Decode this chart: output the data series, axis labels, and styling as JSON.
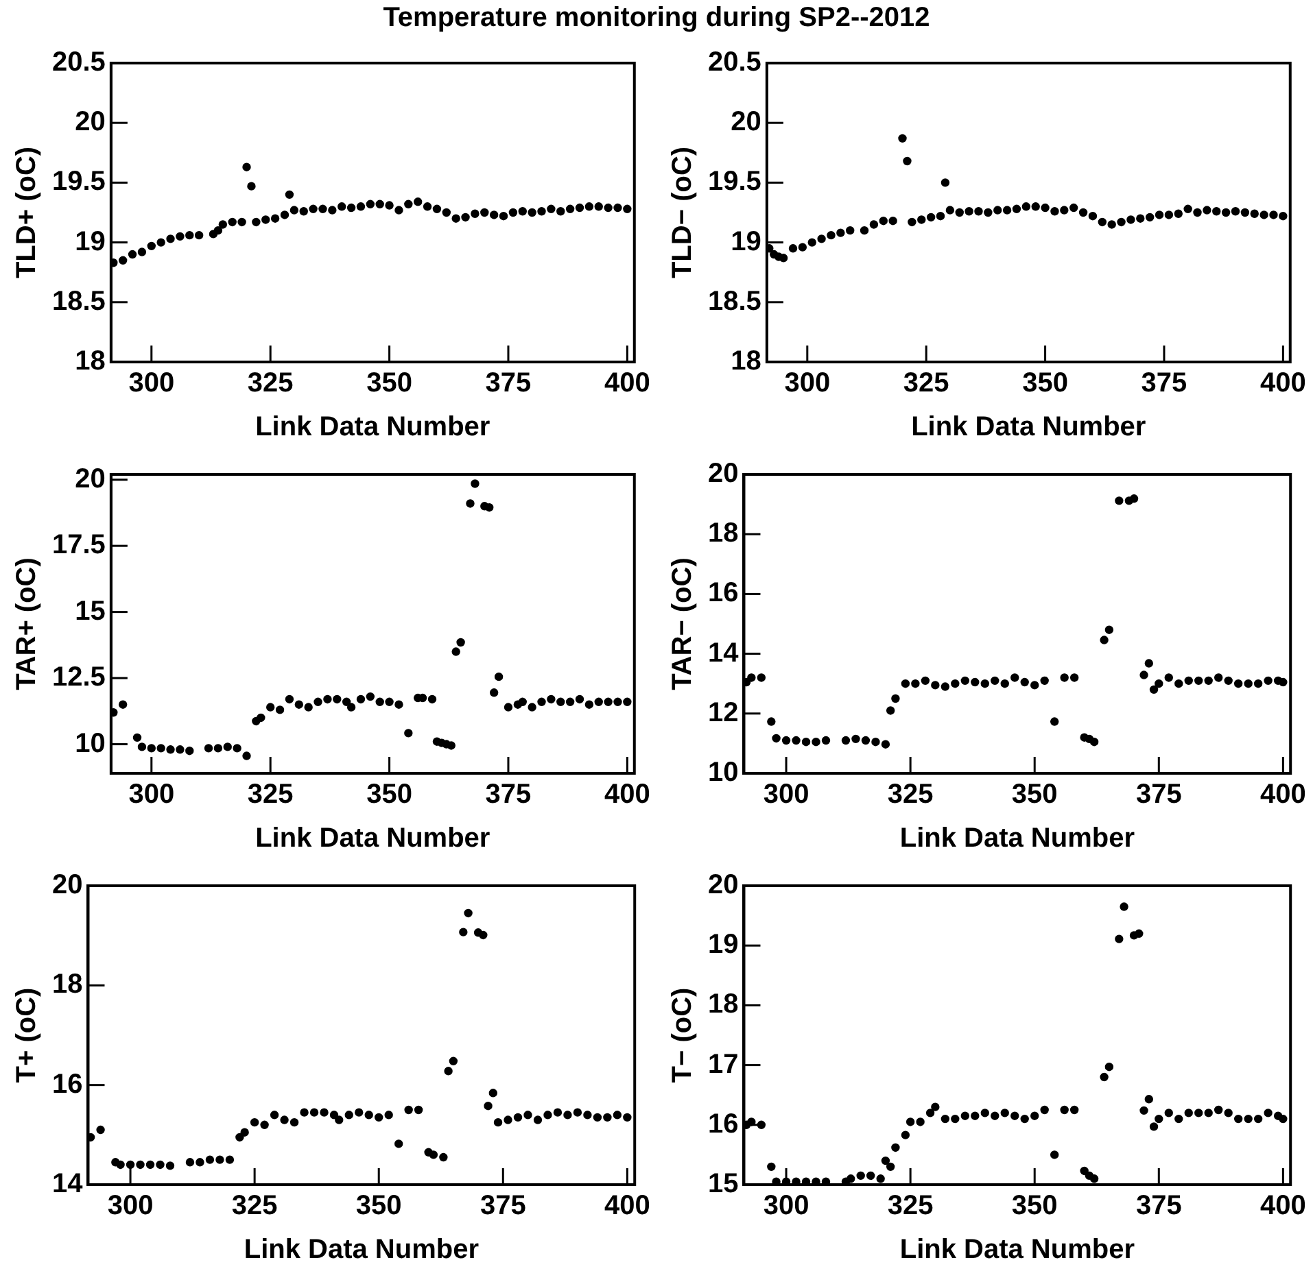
{
  "chart_data": [
    {
      "type": "scatter",
      "title": "Temperature monitoring during SP2--2012",
      "xlabel": "Link Data Number",
      "ylabel": "TLD+ (oC)",
      "color": "#000000",
      "marker": "circle",
      "xlim": [
        291.5,
        401.5
      ],
      "xticks": [
        300,
        325,
        350,
        375,
        400
      ],
      "ylim": [
        18,
        20.5
      ],
      "yticks": [
        18,
        18.5,
        19,
        19.5,
        20,
        20.5
      ],
      "x": [
        292,
        294,
        296,
        298,
        300,
        302,
        304,
        306,
        308,
        310,
        313,
        314,
        315,
        317,
        319,
        320,
        321,
        322,
        324,
        326,
        328,
        329,
        330,
        332,
        334,
        336,
        338,
        340,
        342,
        344,
        346,
        348,
        350,
        352,
        354,
        356,
        358,
        360,
        362,
        364,
        366,
        368,
        370,
        372,
        374,
        376,
        378,
        380,
        382,
        384,
        386,
        388,
        390,
        392,
        394,
        396,
        398,
        400
      ],
      "values": [
        18.83,
        18.85,
        18.9,
        18.92,
        18.97,
        19.0,
        19.03,
        19.05,
        19.06,
        19.06,
        19.07,
        19.1,
        19.15,
        19.17,
        19.17,
        19.63,
        19.47,
        19.17,
        19.19,
        19.2,
        19.23,
        19.4,
        19.27,
        19.26,
        19.28,
        19.28,
        19.27,
        19.3,
        19.29,
        19.3,
        19.32,
        19.32,
        19.31,
        19.27,
        19.32,
        19.34,
        19.3,
        19.28,
        19.25,
        19.2,
        19.21,
        19.24,
        19.25,
        19.23,
        19.22,
        19.25,
        19.26,
        19.25,
        19.26,
        19.28,
        19.26,
        19.28,
        19.29,
        19.3,
        19.3,
        19.29,
        19.29,
        19.28
      ]
    },
    {
      "type": "scatter",
      "xlabel": "Link Data Number",
      "ylabel": "TLD− (oC)",
      "color": "#000000",
      "marker": "circle",
      "xlim": [
        291.5,
        401.5
      ],
      "xticks": [
        300,
        325,
        350,
        375,
        400
      ],
      "ylim": [
        18,
        20.5
      ],
      "yticks": [
        18,
        18.5,
        19,
        19.5,
        20,
        20.5
      ],
      "x": [
        292,
        293,
        294,
        295,
        297,
        299,
        301,
        303,
        305,
        307,
        309,
        312,
        314,
        316,
        318,
        320,
        321,
        322,
        324,
        326,
        328,
        329,
        330,
        332,
        334,
        336,
        338,
        340,
        342,
        344,
        346,
        348,
        350,
        352,
        354,
        356,
        358,
        360,
        362,
        364,
        366,
        368,
        370,
        372,
        374,
        376,
        378,
        380,
        382,
        384,
        386,
        388,
        390,
        392,
        394,
        396,
        398,
        400
      ],
      "values": [
        18.95,
        18.9,
        18.88,
        18.87,
        18.95,
        18.96,
        19.0,
        19.03,
        19.06,
        19.08,
        19.1,
        19.1,
        19.15,
        19.18,
        19.18,
        19.87,
        19.68,
        19.17,
        19.19,
        19.21,
        19.22,
        19.5,
        19.27,
        19.25,
        19.26,
        19.26,
        19.25,
        19.27,
        19.27,
        19.28,
        19.3,
        19.3,
        19.29,
        19.26,
        19.27,
        19.29,
        19.25,
        19.22,
        19.17,
        19.15,
        19.17,
        19.19,
        19.2,
        19.21,
        19.23,
        19.23,
        19.24,
        19.28,
        19.25,
        19.27,
        19.26,
        19.25,
        19.26,
        19.25,
        19.24,
        19.23,
        19.23,
        19.22
      ]
    },
    {
      "type": "scatter",
      "xlabel": "Link Data Number",
      "ylabel": "TAR+ (oC)",
      "color": "#000000",
      "marker": "circle",
      "xlim": [
        291.5,
        401.5
      ],
      "xticks": [
        300,
        325,
        350,
        375,
        400
      ],
      "ylim": [
        8.9,
        20.2
      ],
      "yticks": [
        10,
        12.5,
        15,
        17.5,
        20
      ],
      "x": [
        292,
        294,
        297,
        298,
        300,
        302,
        304,
        306,
        308,
        312,
        314,
        316,
        318,
        320,
        322,
        323,
        325,
        327,
        329,
        331,
        333,
        335,
        337,
        339,
        341,
        342,
        344,
        346,
        348,
        350,
        352,
        354,
        356,
        357,
        359,
        360,
        361,
        362,
        363,
        364,
        365,
        367,
        368,
        370,
        371,
        372,
        373,
        375,
        377,
        378,
        380,
        382,
        384,
        386,
        388,
        390,
        392,
        394,
        396,
        398,
        400
      ],
      "values": [
        11.2,
        11.5,
        10.25,
        9.9,
        9.85,
        9.85,
        9.8,
        9.8,
        9.75,
        9.85,
        9.85,
        9.9,
        9.85,
        9.56,
        10.87,
        11.0,
        11.4,
        11.3,
        11.7,
        11.5,
        11.4,
        11.6,
        11.7,
        11.7,
        11.6,
        11.4,
        11.7,
        11.8,
        11.6,
        11.6,
        11.5,
        10.42,
        11.75,
        11.75,
        11.7,
        10.1,
        10.05,
        10.0,
        9.95,
        13.5,
        13.85,
        19.1,
        19.85,
        19.0,
        18.95,
        11.95,
        12.55,
        11.4,
        11.5,
        11.6,
        11.4,
        11.6,
        11.7,
        11.6,
        11.6,
        11.7,
        11.5,
        11.6,
        11.6,
        11.6,
        11.6
      ]
    },
    {
      "type": "scatter",
      "xlabel": "Link Data Number",
      "ylabel": "TAR− (oC)",
      "color": "#000000",
      "marker": "circle",
      "xlim": [
        291.5,
        401.5
      ],
      "xticks": [
        300,
        325,
        350,
        375,
        400
      ],
      "ylim": [
        10,
        20
      ],
      "yticks": [
        10,
        12,
        14,
        16,
        18,
        20
      ],
      "x": [
        292,
        293,
        295,
        297,
        298,
        300,
        302,
        304,
        306,
        308,
        312,
        314,
        316,
        318,
        320,
        321,
        322,
        324,
        326,
        328,
        330,
        332,
        334,
        336,
        338,
        340,
        342,
        344,
        346,
        348,
        350,
        352,
        354,
        356,
        358,
        360,
        361,
        362,
        364,
        365,
        367,
        369,
        370,
        372,
        373,
        374,
        375,
        377,
        379,
        381,
        383,
        385,
        387,
        389,
        391,
        393,
        395,
        397,
        399,
        400
      ],
      "values": [
        13.05,
        13.2,
        13.2,
        11.73,
        11.17,
        11.1,
        11.1,
        11.05,
        11.05,
        11.1,
        11.1,
        11.15,
        11.1,
        11.05,
        10.97,
        12.1,
        12.5,
        13.0,
        13.0,
        13.1,
        12.95,
        12.9,
        13.0,
        13.1,
        13.05,
        13.0,
        13.1,
        13.0,
        13.2,
        13.05,
        12.95,
        13.1,
        11.73,
        13.2,
        13.2,
        11.2,
        11.15,
        11.05,
        14.46,
        14.8,
        19.12,
        19.12,
        19.19,
        13.29,
        13.68,
        12.8,
        13.0,
        13.2,
        13.0,
        13.1,
        13.1,
        13.1,
        13.2,
        13.1,
        13.0,
        13.0,
        13.0,
        13.1,
        13.1,
        13.05
      ]
    },
    {
      "type": "scatter",
      "xlabel": "Link Data Number",
      "ylabel": "T+ (oC)",
      "color": "#000000",
      "marker": "circle",
      "xlim": [
        291.5,
        401.5
      ],
      "xticks": [
        300,
        325,
        350,
        375,
        400
      ],
      "ylim": [
        14,
        20
      ],
      "yticks": [
        14,
        16,
        18,
        20
      ],
      "x": [
        292,
        294,
        297,
        298,
        300,
        302,
        304,
        306,
        308,
        312,
        314,
        316,
        318,
        320,
        322,
        323,
        325,
        327,
        329,
        331,
        333,
        335,
        337,
        339,
        341,
        342,
        344,
        346,
        348,
        350,
        352,
        354,
        356,
        358,
        360,
        361,
        363,
        364,
        365,
        367,
        368,
        370,
        371,
        372,
        373,
        374,
        376,
        378,
        380,
        382,
        384,
        386,
        388,
        390,
        392,
        394,
        396,
        398,
        400
      ],
      "values": [
        14.95,
        15.1,
        14.45,
        14.4,
        14.4,
        14.4,
        14.4,
        14.4,
        14.38,
        14.45,
        14.45,
        14.5,
        14.5,
        14.5,
        14.95,
        15.05,
        15.25,
        15.2,
        15.4,
        15.3,
        15.25,
        15.45,
        15.45,
        15.45,
        15.4,
        15.3,
        15.4,
        15.45,
        15.4,
        15.35,
        15.4,
        14.82,
        15.5,
        15.5,
        14.65,
        14.6,
        14.55,
        16.28,
        16.48,
        19.07,
        19.45,
        19.06,
        19.01,
        15.58,
        15.84,
        15.25,
        15.3,
        15.35,
        15.4,
        15.3,
        15.4,
        15.45,
        15.4,
        15.45,
        15.4,
        15.35,
        15.35,
        15.4,
        15.35
      ]
    },
    {
      "type": "scatter",
      "xlabel": "Link Data Number",
      "ylabel": "T− (oC)",
      "color": "#000000",
      "marker": "circle",
      "xlim": [
        291.5,
        401.5
      ],
      "xticks": [
        300,
        325,
        350,
        375,
        400
      ],
      "ylim": [
        15,
        20
      ],
      "yticks": [
        15,
        16,
        17,
        18,
        19,
        20
      ],
      "x": [
        292,
        293,
        295,
        297,
        298,
        300,
        302,
        304,
        306,
        308,
        312,
        313,
        315,
        317,
        319,
        320,
        321,
        322,
        324,
        325,
        327,
        329,
        330,
        332,
        334,
        336,
        338,
        340,
        342,
        344,
        346,
        348,
        350,
        352,
        354,
        356,
        358,
        360,
        361,
        362,
        364,
        365,
        367,
        368,
        370,
        371,
        372,
        373,
        374,
        375,
        377,
        379,
        381,
        383,
        385,
        387,
        389,
        391,
        393,
        395,
        397,
        399,
        400
      ],
      "values": [
        16.0,
        16.05,
        16.0,
        15.3,
        15.05,
        15.05,
        15.05,
        15.05,
        15.05,
        15.05,
        15.05,
        15.1,
        15.15,
        15.15,
        15.1,
        15.4,
        15.3,
        15.62,
        15.83,
        16.05,
        16.05,
        16.2,
        16.3,
        16.1,
        16.1,
        16.15,
        16.15,
        16.2,
        16.15,
        16.2,
        16.15,
        16.1,
        16.15,
        16.25,
        15.5,
        16.25,
        16.25,
        15.23,
        15.15,
        15.1,
        16.8,
        16.97,
        19.11,
        19.65,
        19.17,
        19.2,
        16.24,
        16.43,
        15.97,
        16.1,
        16.2,
        16.1,
        16.2,
        16.2,
        16.2,
        16.25,
        16.2,
        16.1,
        16.1,
        16.1,
        16.2,
        16.15,
        16.1
      ]
    }
  ]
}
